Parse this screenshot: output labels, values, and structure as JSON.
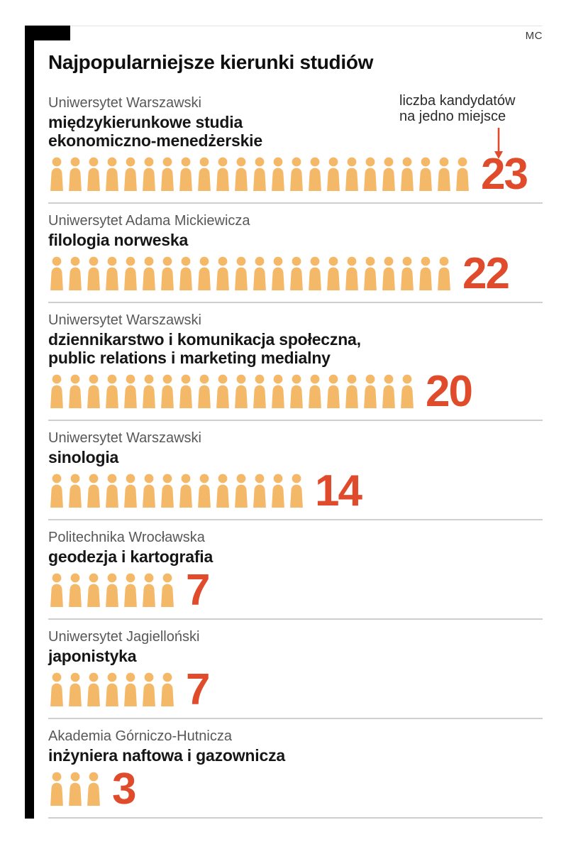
{
  "page": {
    "corner_label": "MC",
    "title": "Najpopularniejsze kierunki studiów",
    "annotation": {
      "line1": "liczba kandydatów",
      "line2": "na jedno miejsce"
    }
  },
  "colors": {
    "icon": "#f4b968",
    "number": "#e04b2c",
    "divider": "#cfcfcf",
    "university_text": "#58585a",
    "program_text": "#161616"
  },
  "icons": {
    "person": "person-icon",
    "arrow": "arrow-down-icon"
  },
  "chart_data": {
    "type": "bar",
    "variant": "pictogram-people",
    "title": "Najpopularniejsze kierunki studiów",
    "value_label": "liczba kandydatów na jedno miejsce",
    "icon_unit": 1,
    "entries": [
      {
        "university": "Uniwersytet Warszawski",
        "program_lines": [
          "międzykierunkowe studia",
          "ekonomiczno-menedżerskie"
        ],
        "value": 23
      },
      {
        "university": "Uniwersytet Adama Mickiewicza",
        "program_lines": [
          "filologia norweska"
        ],
        "value": 22
      },
      {
        "university": "Uniwersytet Warszawski",
        "program_lines": [
          "dziennikarstwo i komunikacja społeczna,",
          "public relations i marketing medialny"
        ],
        "value": 20
      },
      {
        "university": "Uniwersytet Warszawski",
        "program_lines": [
          "sinologia"
        ],
        "value": 14
      },
      {
        "university": "Politechnika Wrocławska",
        "program_lines": [
          "geodezja i kartografia"
        ],
        "value": 7
      },
      {
        "university": "Uniwersytet Jagielloński",
        "program_lines": [
          "japonistyka"
        ],
        "value": 7
      },
      {
        "university": "Akademia Górniczo-Hutnicza",
        "program_lines": [
          "inżyniera naftowa i gazownicza"
        ],
        "value": 3
      }
    ]
  }
}
